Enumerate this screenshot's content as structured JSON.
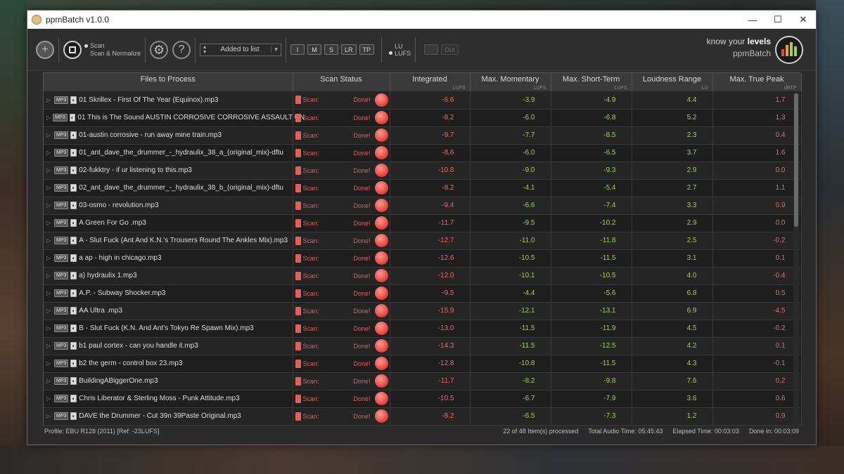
{
  "window": {
    "title": "ppmBatch  v1.0.0",
    "minimize": "—",
    "maximize": "☐",
    "close": "✕"
  },
  "toolbar": {
    "add_icon": "+",
    "help_icon": "?",
    "scan_mode_options": [
      "Scan",
      "Scan & Normalize"
    ],
    "scan_mode_selected": "Scan",
    "sort_select": "Added to list",
    "meter_buttons": [
      "I",
      "M",
      "S",
      "LR",
      "TP"
    ],
    "unit_options": [
      "LU",
      "LUFS"
    ],
    "unit_selected": "LUFS",
    "out_label": "Out"
  },
  "brand": {
    "line1_prefix": "know your ",
    "line1_bold": "levels",
    "line2": "ppmBatch",
    "logo_bar_colors": [
      "#e84a3a",
      "#f0a020",
      "#9fd04a",
      "#9fd04a"
    ],
    "logo_bar_levels": [
      0.5,
      0.8,
      1.0,
      0.7
    ]
  },
  "table": {
    "columns": [
      {
        "label": "Files to Process",
        "unit": ""
      },
      {
        "label": "Scan Status",
        "unit": ""
      },
      {
        "label": "Integrated",
        "unit": "LUFS"
      },
      {
        "label": "Max. Momentary",
        "unit": "LUFS"
      },
      {
        "label": "Max. Short-Term",
        "unit": "LUFS"
      },
      {
        "label": "Loudness Range",
        "unit": "LU"
      },
      {
        "label": "Max. True Peak",
        "unit": "dBTP"
      }
    ],
    "format_badge": "MP3",
    "channel_badge": "◐",
    "scan_label": "Scan:",
    "done_label": "Done!",
    "rows": [
      {
        "file": "01 Skrillex - First Of The Year (Equinox).mp3",
        "integrated": "-6.6",
        "momentary": "-3.9",
        "short_term": "-4.9",
        "range": "4.4",
        "true_peak": "1.7"
      },
      {
        "file": "01 This is The Sound AUSTIN CORROSIVE CORROSIVE ASSAULT UN",
        "integrated": "-8.2",
        "momentary": "-6.0",
        "short_term": "-6.8",
        "range": "5.2",
        "true_peak": "1.3"
      },
      {
        "file": "01-austin corrosive - run away mine train.mp3",
        "integrated": "-9.7",
        "momentary": "-7.7",
        "short_term": "-8.5",
        "range": "2.3",
        "true_peak": "0.4"
      },
      {
        "file": "01_ant_dave_the_drummer_-_hydraulix_38_a_(original_mix)-dftu",
        "integrated": "-8.6",
        "momentary": "-6.0",
        "short_term": "-6.5",
        "range": "3.7",
        "true_peak": "1.6"
      },
      {
        "file": "02-fukktry - if ur listening to this.mp3",
        "integrated": "-10.8",
        "momentary": "-9.0",
        "short_term": "-9.3",
        "range": "2.9",
        "true_peak": "0.0"
      },
      {
        "file": "02_ant_dave_the_drummer_-_hydraulix_38_b_(original_mix)-dftu",
        "integrated": "-8.2",
        "momentary": "-4.1",
        "short_term": "-5.4",
        "range": "2.7",
        "true_peak": "1.1"
      },
      {
        "file": "03-osmo - revolution.mp3",
        "integrated": "-9.4",
        "momentary": "-6.6",
        "short_term": "-7.4",
        "range": "3.3",
        "true_peak": "0.9"
      },
      {
        "file": "A   Green For Go .mp3",
        "integrated": "-11.7",
        "momentary": "-9.5",
        "short_term": "-10.2",
        "range": "2.9",
        "true_peak": "0.0"
      },
      {
        "file": "A - Slut Fuck (Ant And K.N.'s Trousers Round The Ankles Mix).mp3",
        "integrated": "-12.7",
        "momentary": "-11.0",
        "short_term": "-11.8",
        "range": "2.5",
        "true_peak": "-0.2"
      },
      {
        "file": "a ap - high in chicago.mp3",
        "integrated": "-12.6",
        "momentary": "-10.5",
        "short_term": "-11.5",
        "range": "3.1",
        "true_peak": "0.1"
      },
      {
        "file": "a) hydraulix 1.mp3",
        "integrated": "-12.0",
        "momentary": "-10.1",
        "short_term": "-10.5",
        "range": "4.0",
        "true_peak": "-0.4"
      },
      {
        "file": "A.P. - Subway Shocker.mp3",
        "integrated": "-9.5",
        "momentary": "-4.4",
        "short_term": "-5.6",
        "range": "6.8",
        "true_peak": "0.5"
      },
      {
        "file": "AA   Ultra .mp3",
        "integrated": "-15.9",
        "momentary": "-12.1",
        "short_term": "-13.1",
        "range": "6.9",
        "true_peak": "-4.5"
      },
      {
        "file": "B - Slut Fuck (K.N. And Ant's Tokyo Re Spawn Mix).mp3",
        "integrated": "-13.0",
        "momentary": "-11.5",
        "short_term": "-11.9",
        "range": "4.5",
        "true_peak": "-0.2"
      },
      {
        "file": "b1 paul cortex - can you handle it.mp3",
        "integrated": "-14.3",
        "momentary": "-11.5",
        "short_term": "-12.5",
        "range": "4.2",
        "true_peak": "0.1"
      },
      {
        "file": "b2 the germ - control box 23.mp3",
        "integrated": "-12.8",
        "momentary": "-10.8",
        "short_term": "-11.5",
        "range": "4.3",
        "true_peak": "-0.1"
      },
      {
        "file": "BuildingABiggerOne.mp3",
        "integrated": "-11.7",
        "momentary": "-8.2",
        "short_term": "-9.8",
        "range": "7.6",
        "true_peak": "0.2"
      },
      {
        "file": "Chris Liberator & Sterling Moss - Punk Attitude.mp3",
        "integrated": "-10.5",
        "momentary": "-6.7",
        "short_term": "-7.9",
        "range": "3.6",
        "true_peak": "0.6"
      },
      {
        "file": "DAVE the Drummer - Cut 39n 39Paste Original.mp3",
        "integrated": "-8.2",
        "momentary": "-6.5",
        "short_term": "-7.3",
        "range": "1.2",
        "true_peak": "0.9"
      }
    ]
  },
  "status": {
    "profile": "Profile: EBU R128 (2011) [Ref: -23LUFS]",
    "processed": "22 of 48 Item(s) processed",
    "audio_time": "Total Audio Time: 05:45:43",
    "elapsed": "Elapsed Time: 00:03:03",
    "done_in": "Done in: 00:03:09"
  },
  "colors": {
    "negative": "#e86a62",
    "positive": "#9fd04a"
  }
}
